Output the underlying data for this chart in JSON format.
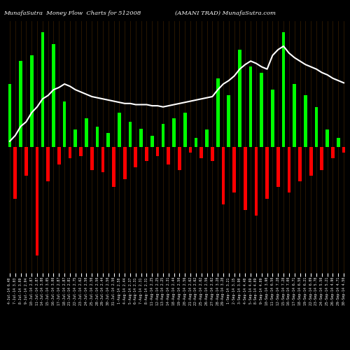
{
  "title_left": "MunafaSutra  Money Flow  Charts for 512008",
  "title_right": "(AMANI TRAD) MunafaSutra.com",
  "bg_color": "#000000",
  "bar_color_pos": "#00FF00",
  "bar_color_neg": "#FF0000",
  "line_color": "#FFFFFF",
  "grid_color": "#3a2000",
  "bar_width": 0.6,
  "bars": [
    {
      "val": 0.55,
      "color": "green"
    },
    {
      "val": -0.45,
      "color": "red"
    },
    {
      "val": 0.75,
      "color": "green"
    },
    {
      "val": -0.25,
      "color": "red"
    },
    {
      "val": 0.8,
      "color": "green"
    },
    {
      "val": -0.95,
      "color": "red"
    },
    {
      "val": 1.0,
      "color": "green"
    },
    {
      "val": -0.3,
      "color": "red"
    },
    {
      "val": 0.9,
      "color": "green"
    },
    {
      "val": -0.15,
      "color": "red"
    },
    {
      "val": 0.4,
      "color": "green"
    },
    {
      "val": -0.1,
      "color": "red"
    },
    {
      "val": 0.15,
      "color": "green"
    },
    {
      "val": -0.08,
      "color": "red"
    },
    {
      "val": 0.25,
      "color": "green"
    },
    {
      "val": -0.2,
      "color": "red"
    },
    {
      "val": 0.18,
      "color": "green"
    },
    {
      "val": -0.22,
      "color": "red"
    },
    {
      "val": 0.12,
      "color": "green"
    },
    {
      "val": -0.35,
      "color": "red"
    },
    {
      "val": 0.3,
      "color": "green"
    },
    {
      "val": -0.28,
      "color": "red"
    },
    {
      "val": 0.22,
      "color": "green"
    },
    {
      "val": -0.18,
      "color": "red"
    },
    {
      "val": 0.16,
      "color": "green"
    },
    {
      "val": -0.12,
      "color": "red"
    },
    {
      "val": 0.1,
      "color": "green"
    },
    {
      "val": -0.08,
      "color": "red"
    },
    {
      "val": 0.2,
      "color": "green"
    },
    {
      "val": -0.15,
      "color": "red"
    },
    {
      "val": 0.25,
      "color": "green"
    },
    {
      "val": -0.2,
      "color": "red"
    },
    {
      "val": 0.3,
      "color": "green"
    },
    {
      "val": -0.05,
      "color": "red"
    },
    {
      "val": 0.08,
      "color": "green"
    },
    {
      "val": -0.1,
      "color": "red"
    },
    {
      "val": 0.15,
      "color": "green"
    },
    {
      "val": -0.12,
      "color": "red"
    },
    {
      "val": 0.6,
      "color": "green"
    },
    {
      "val": -0.5,
      "color": "red"
    },
    {
      "val": 0.45,
      "color": "green"
    },
    {
      "val": -0.4,
      "color": "red"
    },
    {
      "val": 0.85,
      "color": "green"
    },
    {
      "val": -0.55,
      "color": "red"
    },
    {
      "val": 0.7,
      "color": "green"
    },
    {
      "val": -0.6,
      "color": "red"
    },
    {
      "val": 0.65,
      "color": "green"
    },
    {
      "val": -0.45,
      "color": "red"
    },
    {
      "val": 0.5,
      "color": "green"
    },
    {
      "val": -0.35,
      "color": "red"
    },
    {
      "val": 1.0,
      "color": "green"
    },
    {
      "val": -0.4,
      "color": "red"
    },
    {
      "val": 0.55,
      "color": "green"
    },
    {
      "val": -0.3,
      "color": "red"
    },
    {
      "val": 0.45,
      "color": "green"
    },
    {
      "val": -0.25,
      "color": "red"
    },
    {
      "val": 0.35,
      "color": "green"
    },
    {
      "val": -0.2,
      "color": "red"
    },
    {
      "val": 0.15,
      "color": "green"
    },
    {
      "val": -0.1,
      "color": "red"
    },
    {
      "val": 0.08,
      "color": "green"
    },
    {
      "val": -0.05,
      "color": "red"
    }
  ],
  "line_values": [
    0.05,
    0.1,
    0.18,
    0.22,
    0.3,
    0.35,
    0.42,
    0.45,
    0.5,
    0.52,
    0.55,
    0.53,
    0.5,
    0.48,
    0.46,
    0.44,
    0.43,
    0.42,
    0.41,
    0.4,
    0.39,
    0.38,
    0.38,
    0.37,
    0.37,
    0.37,
    0.36,
    0.36,
    0.35,
    0.36,
    0.37,
    0.38,
    0.39,
    0.4,
    0.41,
    0.42,
    0.43,
    0.44,
    0.5,
    0.55,
    0.58,
    0.62,
    0.68,
    0.72,
    0.75,
    0.73,
    0.7,
    0.68,
    0.8,
    0.85,
    0.88,
    0.82,
    0.78,
    0.75,
    0.72,
    0.7,
    0.68,
    0.65,
    0.63,
    0.6,
    0.58,
    0.56
  ],
  "x_labels": [
    "4-Jul-14 6.40",
    "7-Jul-14 3.03",
    "8-Jul-14 3.09",
    "9-Jul-14 2.94",
    "10-Jul-14 2.87",
    "11-Jul-14 2.87",
    "14-Jul-14 3.00",
    "15-Jul-14 3.05",
    "16-Jul-14 3.00",
    "17-Jul-14 2.87",
    "18-Jul-14 2.87",
    "21-Jul-14 2.81",
    "22-Jul-14 2.75",
    "23-Jul-14 2.62",
    "24-Jul-14 2.50",
    "25-Jul-14 2.50",
    "28-Jul-14 2.50",
    "29-Jul-14 2.44",
    "30-Jul-14 2.50",
    "31-Jul-14 2.50",
    "1-Aug-14 2.50",
    "4-Aug-14 2.44",
    "5-Aug-14 2.37",
    "6-Aug-14 2.31",
    "7-Aug-14 2.31",
    "8-Aug-14 2.31",
    "11-Aug-14 2.25",
    "12-Aug-14 2.25",
    "13-Aug-14 2.25",
    "14-Aug-14 2.31",
    "18-Aug-14 2.44",
    "19-Aug-14 2.50",
    "20-Aug-14 2.56",
    "21-Aug-14 2.62",
    "22-Aug-14 2.62",
    "25-Aug-14 2.62",
    "26-Aug-14 2.56",
    "27-Aug-14 2.62",
    "28-Aug-14 3.28",
    "29-Aug-14 3.28",
    "1-Sep-14 3.21",
    "2-Sep-14 3.15",
    "3-Sep-14 3.90",
    "4-Sep-14 4.40",
    "5-Sep-14 4.09",
    "8-Sep-14 4.09",
    "9-Sep-14 4.09",
    "10-Sep-14 3.90",
    "11-Sep-14 6.50",
    "12-Sep-14 7.28",
    "15-Sep-14 7.28",
    "16-Sep-14 7.00",
    "17-Sep-14 6.71",
    "18-Sep-14 6.50",
    "19-Sep-14 6.21",
    "22-Sep-14 6.09",
    "23-Sep-14 5.78",
    "24-Sep-14 5.50",
    "25-Sep-14 5.21",
    "26-Sep-14 4.90",
    "29-Sep-14 4.71",
    "30-Sep-14 4.50"
  ]
}
